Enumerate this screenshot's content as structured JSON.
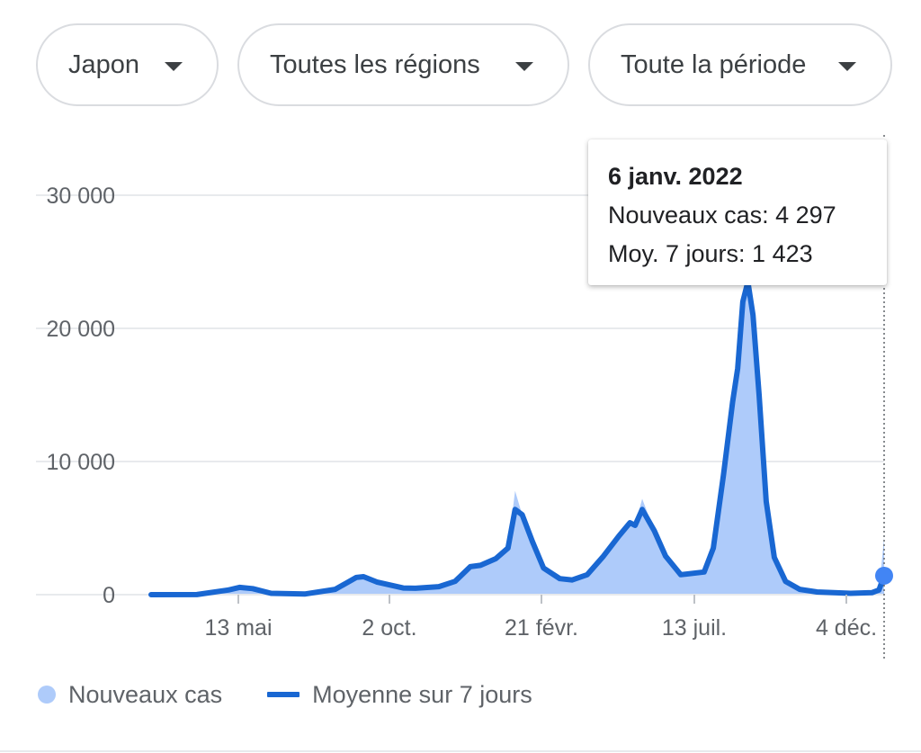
{
  "filters": {
    "country": "Japon",
    "region": "Toutes les régions",
    "period": "Toute la période"
  },
  "tooltip": {
    "date": "6 janv. 2022",
    "new_cases": "Nouveaux cas: 4 297",
    "avg7": "Moy. 7 jours: 1 423"
  },
  "legend": {
    "new_cases": "Nouveaux cas",
    "avg7": "Moyenne sur 7 jours"
  },
  "colors": {
    "area": "#aecbfa",
    "line": "#1967d2",
    "grid": "#e8eaed",
    "highlight": "#4285f4"
  },
  "chart_data": {
    "type": "area",
    "x_ticks": [
      "13 mai",
      "2 oct.",
      "21 févr.",
      "13 juil.",
      "4 déc."
    ],
    "y_ticks": [
      "0",
      "10 000",
      "20 000",
      "30 000"
    ],
    "ylim": [
      0,
      30000
    ],
    "x_range": [
      "2020-01-16",
      "2022-01-06"
    ],
    "grid": true,
    "legend_position": "bottom",
    "series": [
      {
        "name": "Moyenne sur 7 jours",
        "points": [
          [
            "2020-01-16",
            0
          ],
          [
            "2020-03-01",
            10
          ],
          [
            "2020-04-01",
            350
          ],
          [
            "2020-04-12",
            550
          ],
          [
            "2020-04-25",
            450
          ],
          [
            "2020-05-13",
            100
          ],
          [
            "2020-06-15",
            50
          ],
          [
            "2020-07-15",
            400
          ],
          [
            "2020-08-05",
            1300
          ],
          [
            "2020-08-12",
            1350
          ],
          [
            "2020-08-25",
            950
          ],
          [
            "2020-09-20",
            500
          ],
          [
            "2020-10-02",
            480
          ],
          [
            "2020-10-25",
            600
          ],
          [
            "2020-11-10",
            1000
          ],
          [
            "2020-11-25",
            2100
          ],
          [
            "2020-12-05",
            2200
          ],
          [
            "2020-12-20",
            2700
          ],
          [
            "2021-01-01",
            3500
          ],
          [
            "2021-01-08",
            6400
          ],
          [
            "2021-01-15",
            6000
          ],
          [
            "2021-01-25",
            4000
          ],
          [
            "2021-02-05",
            2000
          ],
          [
            "2021-02-21",
            1200
          ],
          [
            "2021-03-05",
            1100
          ],
          [
            "2021-03-20",
            1500
          ],
          [
            "2021-04-05",
            2900
          ],
          [
            "2021-04-20",
            4400
          ],
          [
            "2021-05-01",
            5400
          ],
          [
            "2021-05-06",
            5200
          ],
          [
            "2021-05-13",
            6400
          ],
          [
            "2021-05-25",
            4800
          ],
          [
            "2021-06-05",
            2900
          ],
          [
            "2021-06-20",
            1500
          ],
          [
            "2021-07-13",
            1700
          ],
          [
            "2021-07-22",
            3500
          ],
          [
            "2021-08-01",
            9000
          ],
          [
            "2021-08-10",
            14500
          ],
          [
            "2021-08-15",
            17000
          ],
          [
            "2021-08-20",
            22000
          ],
          [
            "2021-08-25",
            23500
          ],
          [
            "2021-08-30",
            21000
          ],
          [
            "2021-09-05",
            15000
          ],
          [
            "2021-09-12",
            7000
          ],
          [
            "2021-09-20",
            2800
          ],
          [
            "2021-10-01",
            1000
          ],
          [
            "2021-10-15",
            400
          ],
          [
            "2021-11-01",
            200
          ],
          [
            "2021-12-04",
            100
          ],
          [
            "2021-12-25",
            150
          ],
          [
            "2022-01-01",
            350
          ],
          [
            "2022-01-06",
            1423
          ]
        ]
      },
      {
        "name": "Nouveaux cas",
        "points": [
          [
            "2020-01-16",
            0
          ],
          [
            "2020-03-01",
            10
          ],
          [
            "2020-04-01",
            350
          ],
          [
            "2020-04-12",
            550
          ],
          [
            "2020-04-25",
            450
          ],
          [
            "2020-05-13",
            100
          ],
          [
            "2020-06-15",
            50
          ],
          [
            "2020-07-15",
            400
          ],
          [
            "2020-08-05",
            1300
          ],
          [
            "2020-08-12",
            1350
          ],
          [
            "2020-08-25",
            950
          ],
          [
            "2020-09-20",
            500
          ],
          [
            "2020-10-02",
            480
          ],
          [
            "2020-10-25",
            600
          ],
          [
            "2020-11-10",
            1000
          ],
          [
            "2020-11-25",
            2100
          ],
          [
            "2020-12-05",
            2200
          ],
          [
            "2020-12-20",
            2700
          ],
          [
            "2021-01-01",
            3500
          ],
          [
            "2021-01-08",
            7800
          ],
          [
            "2021-01-15",
            6000
          ],
          [
            "2021-01-25",
            4000
          ],
          [
            "2021-02-05",
            2000
          ],
          [
            "2021-02-21",
            1200
          ],
          [
            "2021-03-05",
            1100
          ],
          [
            "2021-03-20",
            1500
          ],
          [
            "2021-04-05",
            2900
          ],
          [
            "2021-04-20",
            4400
          ],
          [
            "2021-05-01",
            5600
          ],
          [
            "2021-05-06",
            5200
          ],
          [
            "2021-05-13",
            7200
          ],
          [
            "2021-05-25",
            4800
          ],
          [
            "2021-06-05",
            2900
          ],
          [
            "2021-06-20",
            1500
          ],
          [
            "2021-07-13",
            1700
          ],
          [
            "2021-07-22",
            3500
          ],
          [
            "2021-08-01",
            9000
          ],
          [
            "2021-08-10",
            15800
          ],
          [
            "2021-08-15",
            17500
          ],
          [
            "2021-08-20",
            22500
          ],
          [
            "2021-08-25",
            24500
          ],
          [
            "2021-08-30",
            21000
          ],
          [
            "2021-09-05",
            15000
          ],
          [
            "2021-09-12",
            7000
          ],
          [
            "2021-09-20",
            2800
          ],
          [
            "2021-10-01",
            1000
          ],
          [
            "2021-10-15",
            400
          ],
          [
            "2021-11-01",
            200
          ],
          [
            "2021-12-04",
            100
          ],
          [
            "2021-12-25",
            150
          ],
          [
            "2022-01-01",
            350
          ],
          [
            "2022-01-06",
            4297
          ]
        ]
      }
    ],
    "highlight": {
      "date": "2022-01-06",
      "new_cases": 4297,
      "avg7": 1423
    }
  }
}
